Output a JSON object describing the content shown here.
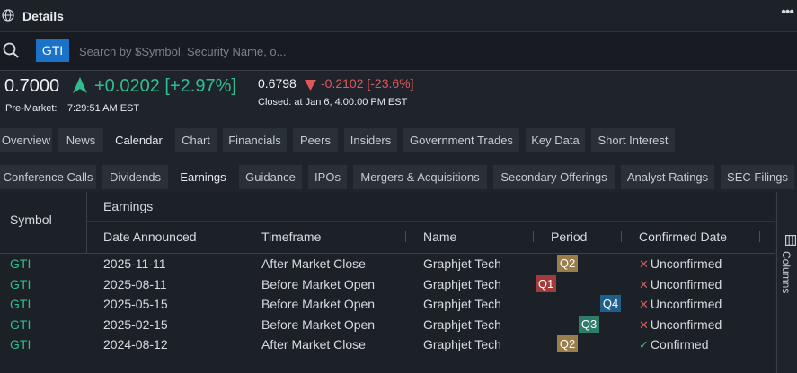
{
  "titlebar": {
    "title": "Details",
    "menu_icon": "more-icon",
    "globe_icon": "globe-icon"
  },
  "search": {
    "ticker": "GTI",
    "placeholder": "Search by $Symbol, Security Name, o..."
  },
  "quote": {
    "price": "0.7000",
    "change": "+0.0202 [+2.97%]",
    "premarket_label": "Pre-Market:",
    "premarket_time": "7:29:51 AM EST",
    "close_price": "0.6798",
    "close_change": "-0.2102 [-23.6%]",
    "closed_label": "Closed: at Jan 6, 4:00:00 PM EST",
    "colors": {
      "up": "#2fbf8f",
      "down": "#e05757"
    }
  },
  "tabs_row1": [
    "Overview",
    "News",
    "Calendar",
    "Chart",
    "Financials",
    "Peers",
    "Insiders",
    "Government Trades",
    "Key Data",
    "Short Interest"
  ],
  "tabs_row1_active": "Calendar",
  "tabs_row2": [
    "Conference Calls",
    "Dividends",
    "Earnings",
    "Guidance",
    "IPOs",
    "Mergers & Acquisitions",
    "Secondary Offerings",
    "Analyst Ratings",
    "SEC Filings"
  ],
  "tabs_row2_active": "Earnings",
  "grid": {
    "symbol_header": "Symbol",
    "group_header": "Earnings",
    "columns": [
      "Date Announced",
      "Timeframe",
      "Name",
      "Period",
      "Confirmed Date"
    ],
    "rows": [
      {
        "symbol": "GTI",
        "date": "2025-11-11",
        "timeframe": "After Market Close",
        "name": "Graphjet Tech",
        "period": "Q2",
        "confirmed": "Unconfirmed",
        "is_confirmed": false
      },
      {
        "symbol": "GTI",
        "date": "2025-08-11",
        "timeframe": "Before Market Open",
        "name": "Graphjet Tech",
        "period": "Q1",
        "confirmed": "Unconfirmed",
        "is_confirmed": false
      },
      {
        "symbol": "GTI",
        "date": "2025-05-15",
        "timeframe": "Before Market Open",
        "name": "Graphjet Tech",
        "period": "Q4",
        "confirmed": "Unconfirmed",
        "is_confirmed": false
      },
      {
        "symbol": "GTI",
        "date": "2025-02-15",
        "timeframe": "Before Market Open",
        "name": "Graphjet Tech",
        "period": "Q3",
        "confirmed": "Unconfirmed",
        "is_confirmed": false
      },
      {
        "symbol": "GTI",
        "date": "2024-08-12",
        "timeframe": "After Market Close",
        "name": "Graphjet Tech",
        "period": "Q2",
        "confirmed": "Confirmed",
        "is_confirmed": true
      }
    ],
    "period_colors": {
      "Q1": "#a43b3b",
      "Q2": "#9a7d4a",
      "Q3": "#2e7d6b",
      "Q4": "#1f5f8b"
    }
  },
  "columns_panel": {
    "label": "Columns",
    "icon": "columns-icon"
  }
}
